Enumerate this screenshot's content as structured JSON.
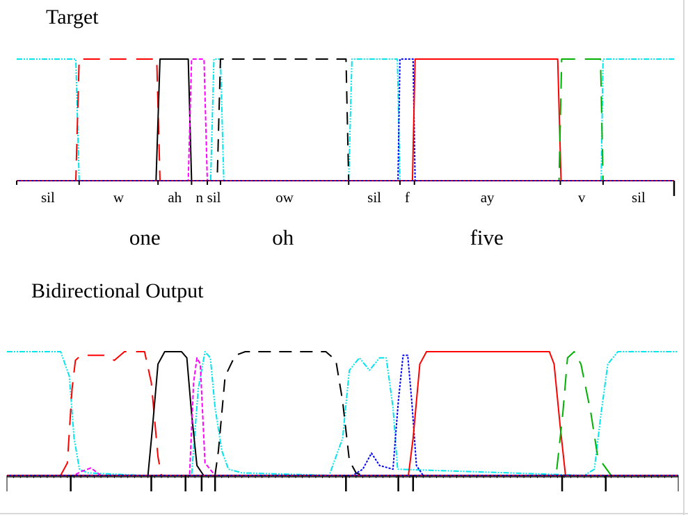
{
  "colors": {
    "sil": "#00e5ee",
    "w": "#ff0000",
    "ah": "#000000",
    "n": "#ff00ff",
    "ow": "#000000",
    "f": "#0000ff",
    "ay": "#ff0000",
    "v": "#00b000",
    "baseline": "#0000cc"
  },
  "chart_data": [
    {
      "type": "line",
      "title": "Target",
      "x_unit": "frame",
      "xlim": [
        0,
        100
      ],
      "ylim": [
        0,
        1
      ],
      "phones": [
        {
          "label": "sil",
          "start": 0,
          "end": 9.5
        },
        {
          "label": "w",
          "start": 9.5,
          "end": 21.5
        },
        {
          "label": "ah",
          "start": 21.5,
          "end": 26.6
        },
        {
          "label": "n",
          "start": 26.6,
          "end": 29
        },
        {
          "label": "sil",
          "start": 29,
          "end": 31
        },
        {
          "label": "ow",
          "start": 31,
          "end": 50.5
        },
        {
          "label": "sil",
          "start": 50.5,
          "end": 58.3
        },
        {
          "label": "f",
          "start": 58.3,
          "end": 60.5
        },
        {
          "label": "ay",
          "start": 60.5,
          "end": 82.7
        },
        {
          "label": "v",
          "start": 82.7,
          "end": 89.2
        },
        {
          "label": "sil",
          "start": 89.2,
          "end": 100
        }
      ],
      "words": [
        {
          "label": "one",
          "position": 19.5
        },
        {
          "label": "oh",
          "position": 40.5
        },
        {
          "label": "five",
          "position": 71.5
        }
      ],
      "series": [
        {
          "phone": "sil",
          "style": "dash-dot-dot",
          "points": [
            [
              0,
              1
            ],
            [
              9,
              1
            ],
            [
              9.5,
              0
            ],
            [
              29.5,
              0
            ],
            [
              30,
              1
            ],
            [
              31,
              1
            ],
            [
              31.5,
              0
            ],
            [
              50.5,
              0
            ],
            [
              51,
              1
            ],
            [
              57.9,
              1
            ],
            [
              58.3,
              0
            ],
            [
              88.9,
              0
            ],
            [
              89.2,
              1
            ],
            [
              100,
              1
            ]
          ]
        },
        {
          "phone": "w",
          "style": "long-dash",
          "points": [
            [
              0,
              0
            ],
            [
              9,
              0
            ],
            [
              9.5,
              1
            ],
            [
              21.3,
              1
            ],
            [
              21.8,
              0
            ],
            [
              100,
              0
            ]
          ]
        },
        {
          "phone": "ah",
          "style": "solid",
          "points": [
            [
              0,
              0
            ],
            [
              21.2,
              0
            ],
            [
              21.8,
              1
            ],
            [
              26.1,
              1
            ],
            [
              26.6,
              0
            ],
            [
              100,
              0
            ]
          ]
        },
        {
          "phone": "n",
          "style": "short-dash",
          "points": [
            [
              0,
              0
            ],
            [
              26.1,
              0
            ],
            [
              26.6,
              1
            ],
            [
              28.5,
              1
            ],
            [
              29,
              0
            ],
            [
              100,
              0
            ]
          ]
        },
        {
          "phone": "ow",
          "style": "dashed",
          "points": [
            [
              0,
              0
            ],
            [
              30.5,
              0
            ],
            [
              31,
              1
            ],
            [
              50.1,
              1
            ],
            [
              50.5,
              0
            ],
            [
              100,
              0
            ]
          ]
        },
        {
          "phone": "f",
          "style": "dotted",
          "points": [
            [
              0,
              0
            ],
            [
              58,
              0
            ],
            [
              58.3,
              1
            ],
            [
              60.3,
              1
            ],
            [
              60.6,
              0
            ],
            [
              100,
              0
            ]
          ]
        },
        {
          "phone": "ay",
          "style": "solid",
          "points": [
            [
              0,
              0
            ],
            [
              60.2,
              0
            ],
            [
              60.6,
              1
            ],
            [
              82.3,
              1
            ],
            [
              82.8,
              0
            ],
            [
              100,
              0
            ]
          ]
        },
        {
          "phone": "v",
          "style": "long-dash",
          "points": [
            [
              0,
              0
            ],
            [
              82.5,
              0
            ],
            [
              82.9,
              1
            ],
            [
              88.8,
              1
            ],
            [
              89.2,
              0
            ],
            [
              100,
              0
            ]
          ]
        }
      ]
    },
    {
      "type": "line",
      "title": "Bidirectional Output",
      "x_unit": "frame",
      "xlim": [
        0,
        100
      ],
      "ylim": [
        0,
        1
      ],
      "boundaries": [
        0,
        9.5,
        21.5,
        26.6,
        29,
        31,
        50.5,
        58.3,
        60.5,
        82.7,
        89.2,
        100
      ],
      "series": [
        {
          "phone": "sil",
          "style": "dash-dot-dot",
          "points": [
            [
              0,
              1
            ],
            [
              8,
              1
            ],
            [
              9.3,
              0.8
            ],
            [
              10,
              0.3
            ],
            [
              10.8,
              0.05
            ],
            [
              12,
              0.02
            ],
            [
              20,
              0
            ],
            [
              27.5,
              0
            ],
            [
              28.5,
              0.7
            ],
            [
              29.5,
              1
            ],
            [
              30.3,
              0.95
            ],
            [
              31,
              0.55
            ],
            [
              32,
              0.2
            ],
            [
              33,
              0.05
            ],
            [
              35,
              0.02
            ],
            [
              48,
              0
            ],
            [
              50,
              0.3
            ],
            [
              51,
              0.85
            ],
            [
              52.5,
              0.95
            ],
            [
              54,
              0.85
            ],
            [
              55.5,
              0.95
            ],
            [
              56.5,
              0.95
            ],
            [
              57.5,
              0.55
            ],
            [
              58.2,
              0.05
            ],
            [
              86,
              0
            ],
            [
              87.5,
              0.05
            ],
            [
              88.5,
              0.5
            ],
            [
              89.5,
              0.9
            ],
            [
              91,
              1
            ],
            [
              100,
              1
            ]
          ]
        },
        {
          "phone": "w",
          "style": "long-dash",
          "points": [
            [
              0,
              0
            ],
            [
              8,
              0
            ],
            [
              9,
              0.1
            ],
            [
              9.7,
              0.7
            ],
            [
              10.2,
              0.93
            ],
            [
              11,
              0.97
            ],
            [
              14.5,
              0.97
            ],
            [
              16,
              0.93
            ],
            [
              17.5,
              1
            ],
            [
              20.5,
              1
            ],
            [
              21.5,
              0.75
            ],
            [
              22.5,
              0.15
            ],
            [
              23,
              0
            ],
            [
              100,
              0
            ]
          ]
        },
        {
          "phone": "ah",
          "style": "solid",
          "points": [
            [
              0,
              0
            ],
            [
              21,
              0
            ],
            [
              21.7,
              0.4
            ],
            [
              22.5,
              0.9
            ],
            [
              23.5,
              1
            ],
            [
              26,
              1
            ],
            [
              26.8,
              0.95
            ],
            [
              27.5,
              0.5
            ],
            [
              28.3,
              0.08
            ],
            [
              29.3,
              0
            ],
            [
              100,
              0
            ]
          ]
        },
        {
          "phone": "n",
          "style": "short-dash",
          "points": [
            [
              0,
              0
            ],
            [
              10,
              0
            ],
            [
              11,
              0.03
            ],
            [
              12.5,
              0.06
            ],
            [
              14,
              0
            ],
            [
              27.2,
              0
            ],
            [
              27.8,
              0.75
            ],
            [
              28.3,
              0.95
            ],
            [
              28.8,
              0.9
            ],
            [
              29.5,
              0.1
            ],
            [
              31,
              0
            ],
            [
              100,
              0
            ]
          ]
        },
        {
          "phone": "ow",
          "style": "dashed",
          "points": [
            [
              0,
              0
            ],
            [
              31,
              0
            ],
            [
              31.5,
              0.2
            ],
            [
              32.5,
              0.8
            ],
            [
              34,
              0.97
            ],
            [
              35.5,
              1
            ],
            [
              47.5,
              1
            ],
            [
              49,
              0.93
            ],
            [
              50,
              0.6
            ],
            [
              51,
              0.12
            ],
            [
              52,
              0.02
            ],
            [
              53,
              0
            ],
            [
              100,
              0
            ]
          ]
        },
        {
          "phone": "f",
          "style": "dotted",
          "points": [
            [
              0,
              0
            ],
            [
              51.5,
              0
            ],
            [
              53,
              0.05
            ],
            [
              54.3,
              0.18
            ],
            [
              55.5,
              0.08
            ],
            [
              57.5,
              0.05
            ],
            [
              58.3,
              0.6
            ],
            [
              59,
              0.97
            ],
            [
              59.7,
              0.97
            ],
            [
              60.3,
              0.6
            ],
            [
              61,
              0.08
            ],
            [
              62,
              0
            ],
            [
              100,
              0
            ]
          ]
        },
        {
          "phone": "ay",
          "style": "solid",
          "points": [
            [
              0,
              0
            ],
            [
              59.8,
              0
            ],
            [
              60.5,
              0.3
            ],
            [
              61.5,
              0.9
            ],
            [
              62.5,
              1
            ],
            [
              80.8,
              1
            ],
            [
              81.5,
              0.9
            ],
            [
              82.4,
              0.4
            ],
            [
              83.2,
              0
            ],
            [
              100,
              0
            ]
          ]
        },
        {
          "phone": "v",
          "style": "long-dash",
          "points": [
            [
              0,
              0
            ],
            [
              81.8,
              0
            ],
            [
              82.8,
              0.5
            ],
            [
              83.5,
              0.95
            ],
            [
              84.5,
              1
            ],
            [
              85.5,
              0.9
            ],
            [
              87,
              0.5
            ],
            [
              88,
              0.15
            ],
            [
              90,
              0
            ],
            [
              100,
              0
            ]
          ]
        }
      ]
    }
  ]
}
